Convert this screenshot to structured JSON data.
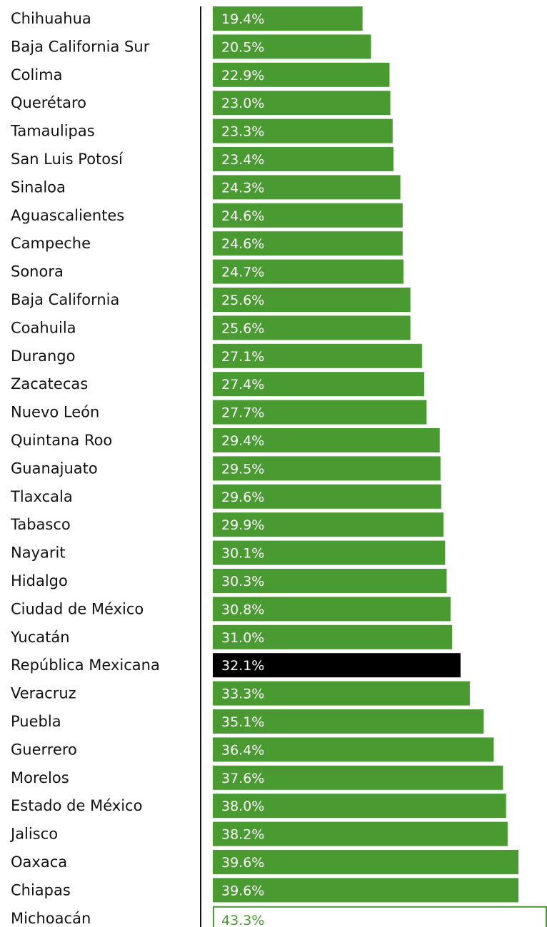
{
  "chart_data": {
    "type": "bar",
    "orientation": "horizontal",
    "unit": "%",
    "title": "",
    "xlabel": "",
    "ylabel": "",
    "grid": false,
    "xlim": [
      0,
      43.3
    ],
    "categories": [
      "Chihuahua",
      "Baja California Sur",
      "Colima",
      "Querétaro",
      "Tamaulipas",
      "San Luis Potosí",
      "Sinaloa",
      "Aguascalientes",
      "Campeche",
      "Sonora",
      "Baja California",
      "Coahuila",
      "Durango",
      "Zacatecas",
      "Nuevo León",
      "Quintana Roo",
      "Guanajuato",
      "Tlaxcala",
      "Tabasco",
      "Nayarit",
      "Hidalgo",
      "Ciudad de México",
      "Yucatán",
      "República Mexicana",
      "Veracruz",
      "Puebla",
      "Guerrero",
      "Morelos",
      "Estado de México",
      "Jalisco",
      "Oaxaca",
      "Chiapas",
      "Michoacán"
    ],
    "values": [
      19.4,
      20.5,
      22.9,
      23.0,
      23.3,
      23.4,
      24.3,
      24.6,
      24.6,
      24.7,
      25.6,
      25.6,
      27.1,
      27.4,
      27.7,
      29.4,
      29.5,
      29.6,
      29.9,
      30.1,
      30.3,
      30.8,
      31.0,
      32.1,
      33.3,
      35.1,
      36.4,
      37.6,
      38.0,
      38.2,
      39.6,
      39.6,
      43.3
    ],
    "value_labels": [
      "19.4%",
      "20.5%",
      "22.9%",
      "23.0%",
      "23.3%",
      "23.4%",
      "24.3%",
      "24.6%",
      "24.6%",
      "24.7%",
      "25.6%",
      "25.6%",
      "27.1%",
      "27.4%",
      "27.7%",
      "29.4%",
      "29.5%",
      "29.6%",
      "29.9%",
      "30.1%",
      "30.3%",
      "30.8%",
      "31.0%",
      "32.1%",
      "33.3%",
      "35.1%",
      "36.4%",
      "37.6%",
      "38.0%",
      "38.2%",
      "39.6%",
      "39.6%",
      "43.3%"
    ],
    "highlight_category": "República Mexicana",
    "outline_category": "Michoacán",
    "colors": {
      "bar": "#4a9a32",
      "highlight": "#000000",
      "outline_fill": "#ffffff",
      "value_text": "#ffffff",
      "outline_text": "#4a9a32",
      "axis": "#111111"
    }
  }
}
